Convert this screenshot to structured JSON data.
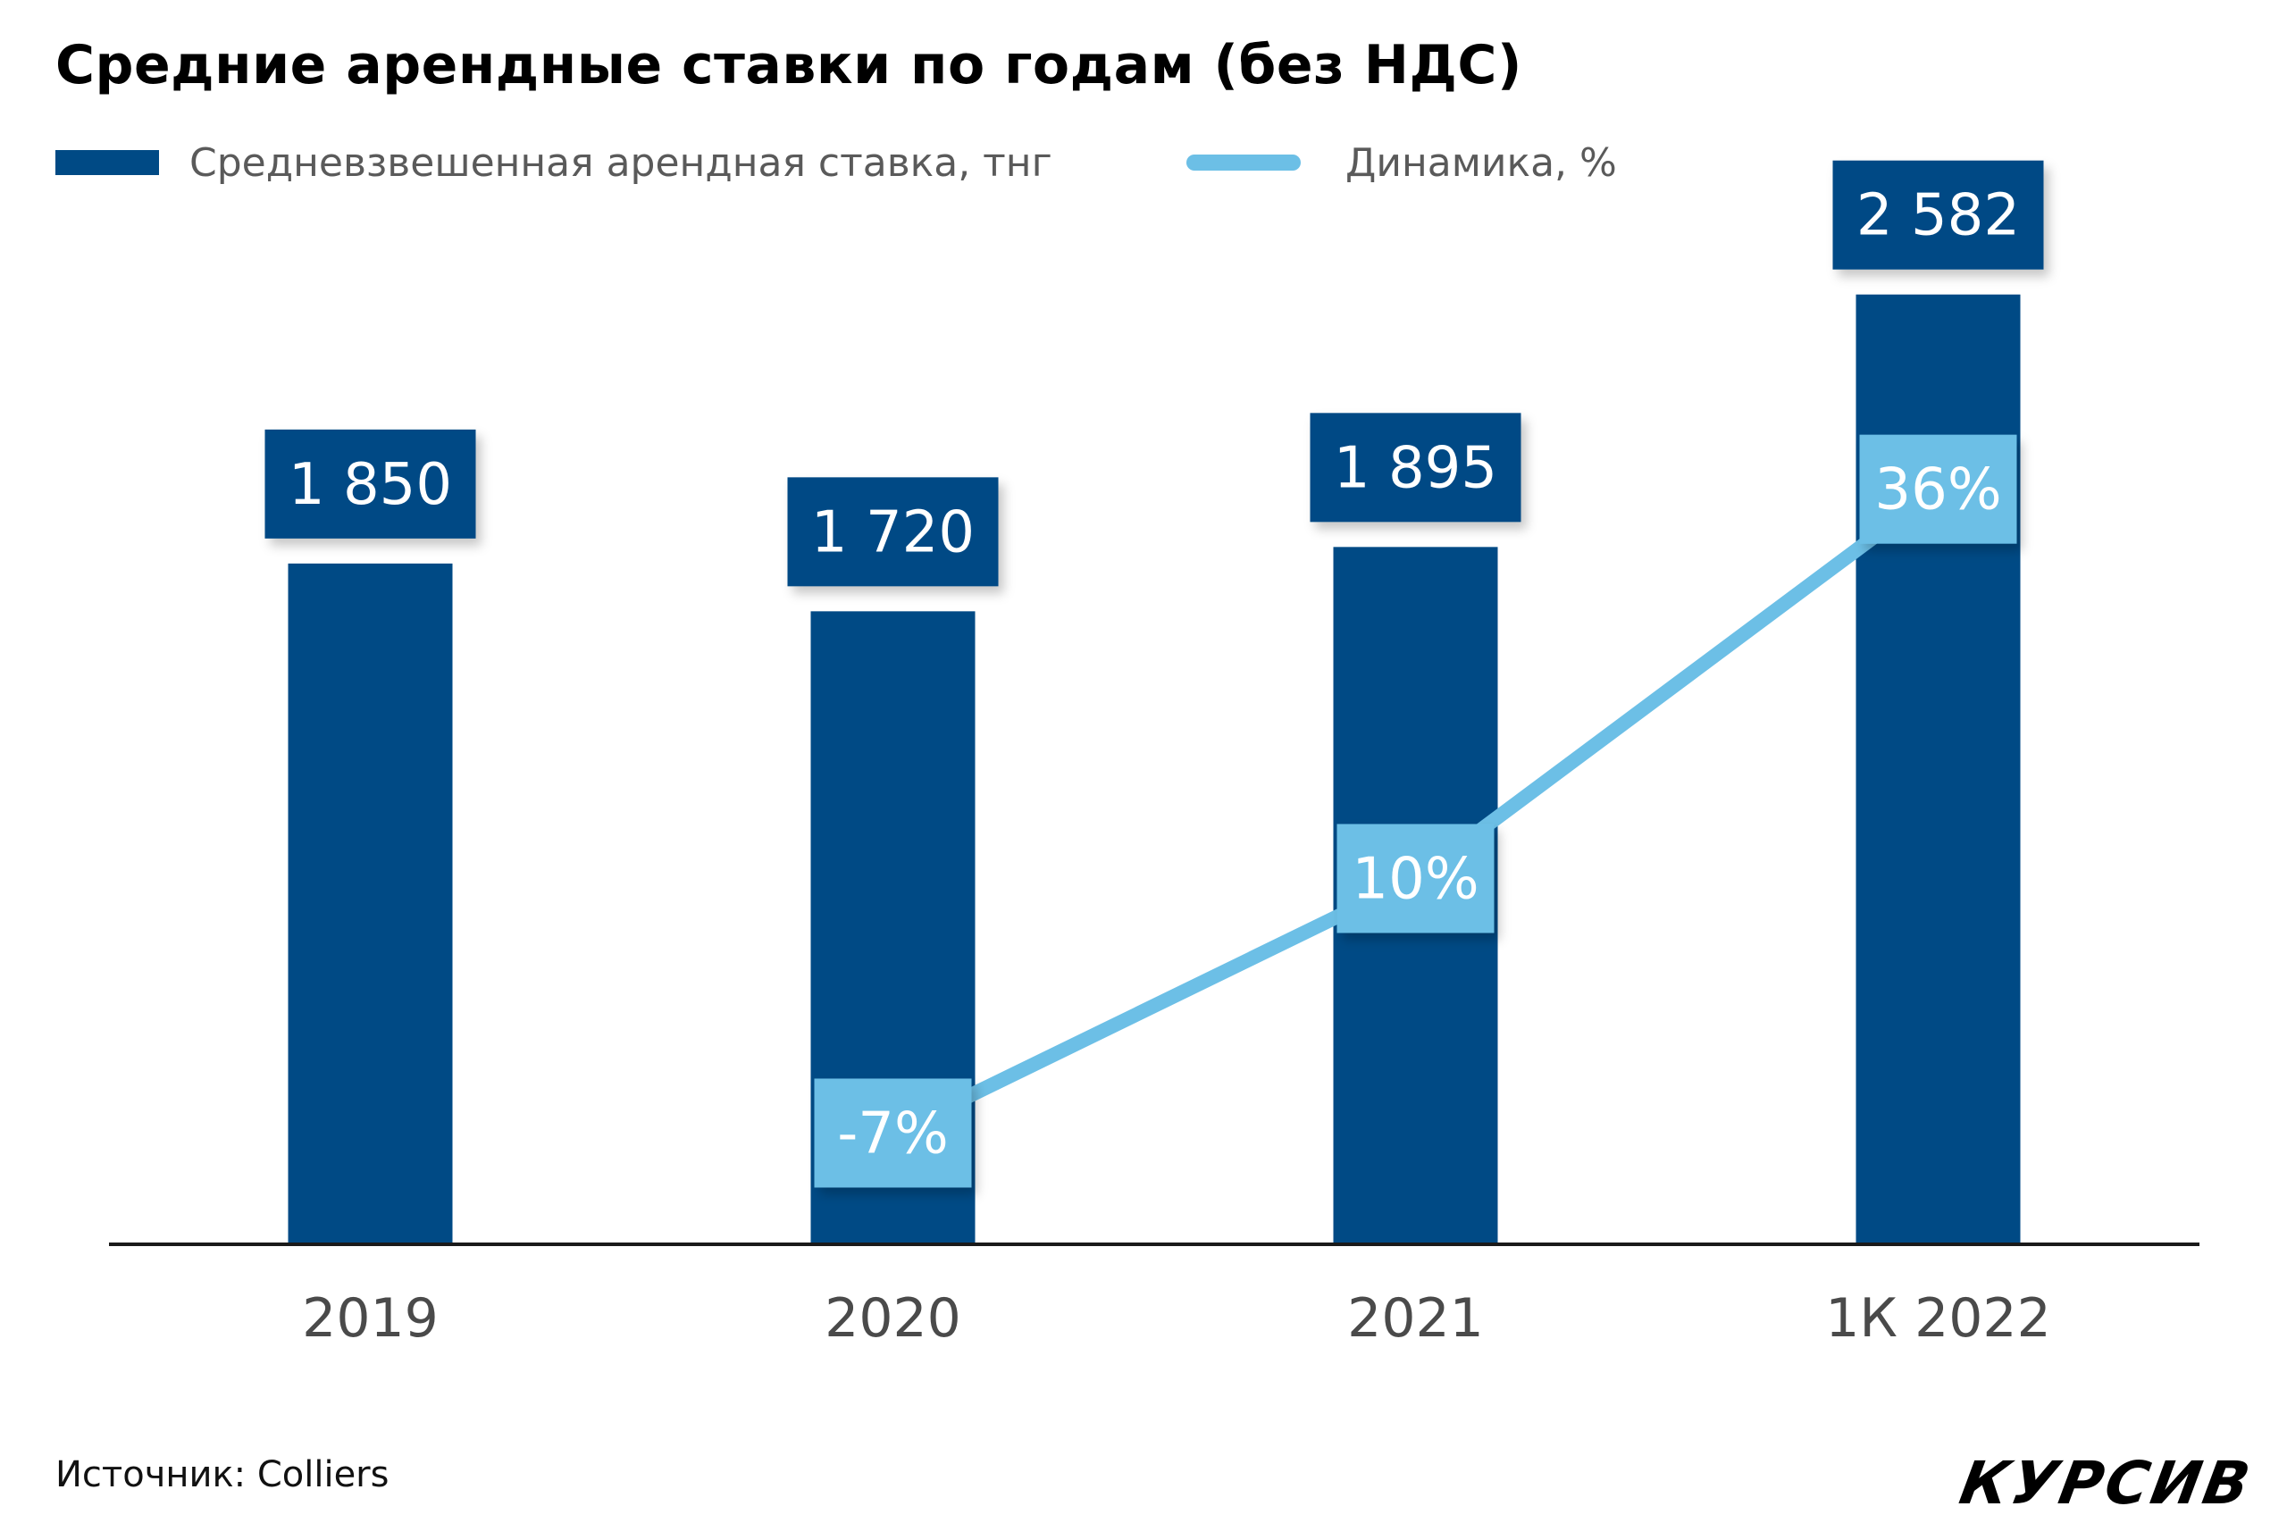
{
  "chart_data": {
    "type": "bar",
    "title": "Средние арендные ставки по годам (без НДС)",
    "categories": [
      "2019",
      "2020",
      "2021",
      "1К 2022"
    ],
    "series": [
      {
        "name": "Средневзвешенная арендная ставка, тнг",
        "type": "bar",
        "values": [
          1850,
          1720,
          1895,
          2582
        ],
        "labels": [
          "1 850",
          "1 720",
          "1 895",
          "2 582"
        ],
        "color": "#004a85"
      },
      {
        "name": "Динамика, %",
        "type": "line",
        "values": [
          null,
          -7,
          10,
          36
        ],
        "labels": [
          "",
          "-7%",
          "10%",
          "36%"
        ],
        "color": "#6cbfe6"
      }
    ],
    "ylim": [
      0,
      2800
    ],
    "line_ylim": [
      -9,
      46
    ],
    "legend_position": "top-left",
    "grid": false
  },
  "source": "Источник: Colliers",
  "brand": "КУРСИВ"
}
